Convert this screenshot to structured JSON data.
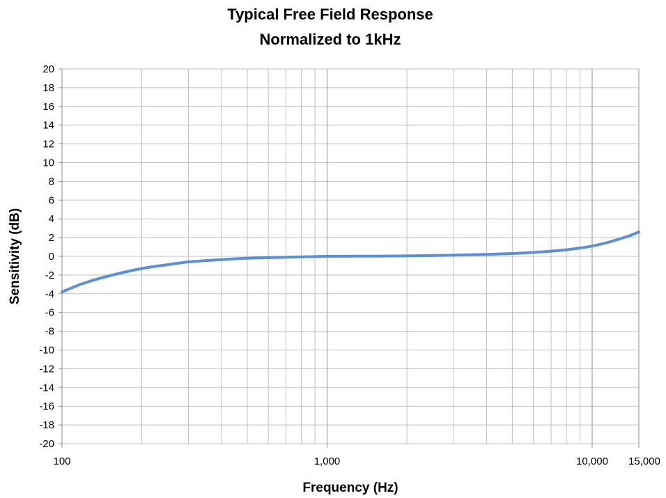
{
  "chart_data": {
    "type": "line",
    "title": "Typical Free Field Response",
    "subtitle": "Normalized to 1kHz",
    "xlabel": "Frequency (Hz)",
    "ylabel": "Sensitivity (dB)",
    "x_scale": "log",
    "xlim": [
      100,
      15000
    ],
    "ylim": [
      -20,
      20
    ],
    "grid": true,
    "x_tick_labels": [
      {
        "value": 100,
        "label": "100"
      },
      {
        "value": 1000,
        "label": "1,000"
      },
      {
        "value": 10000,
        "label": "10,000"
      },
      {
        "value": 15000,
        "label": "15,000"
      }
    ],
    "y_ticks": [
      20,
      18,
      16,
      14,
      12,
      10,
      8,
      6,
      4,
      2,
      0,
      -2,
      -4,
      -6,
      -8,
      -10,
      -12,
      -14,
      -16,
      -18,
      -20
    ],
    "series": [
      {
        "color": "#5b8fd6",
        "x": [
          100,
          120,
          150,
          200,
          250,
          300,
          400,
          500,
          700,
          1000,
          1500,
          2000,
          3000,
          4000,
          5000,
          6000,
          7000,
          8000,
          9000,
          10000,
          11000,
          12000,
          13000,
          14000,
          15000
        ],
        "y": [
          -3.8,
          -2.9,
          -2.1,
          -1.3,
          -0.9,
          -0.6,
          -0.35,
          -0.2,
          -0.1,
          0.0,
          0.02,
          0.05,
          0.12,
          0.2,
          0.3,
          0.42,
          0.55,
          0.7,
          0.88,
          1.1,
          1.35,
          1.65,
          1.95,
          2.25,
          2.6
        ]
      }
    ]
  }
}
